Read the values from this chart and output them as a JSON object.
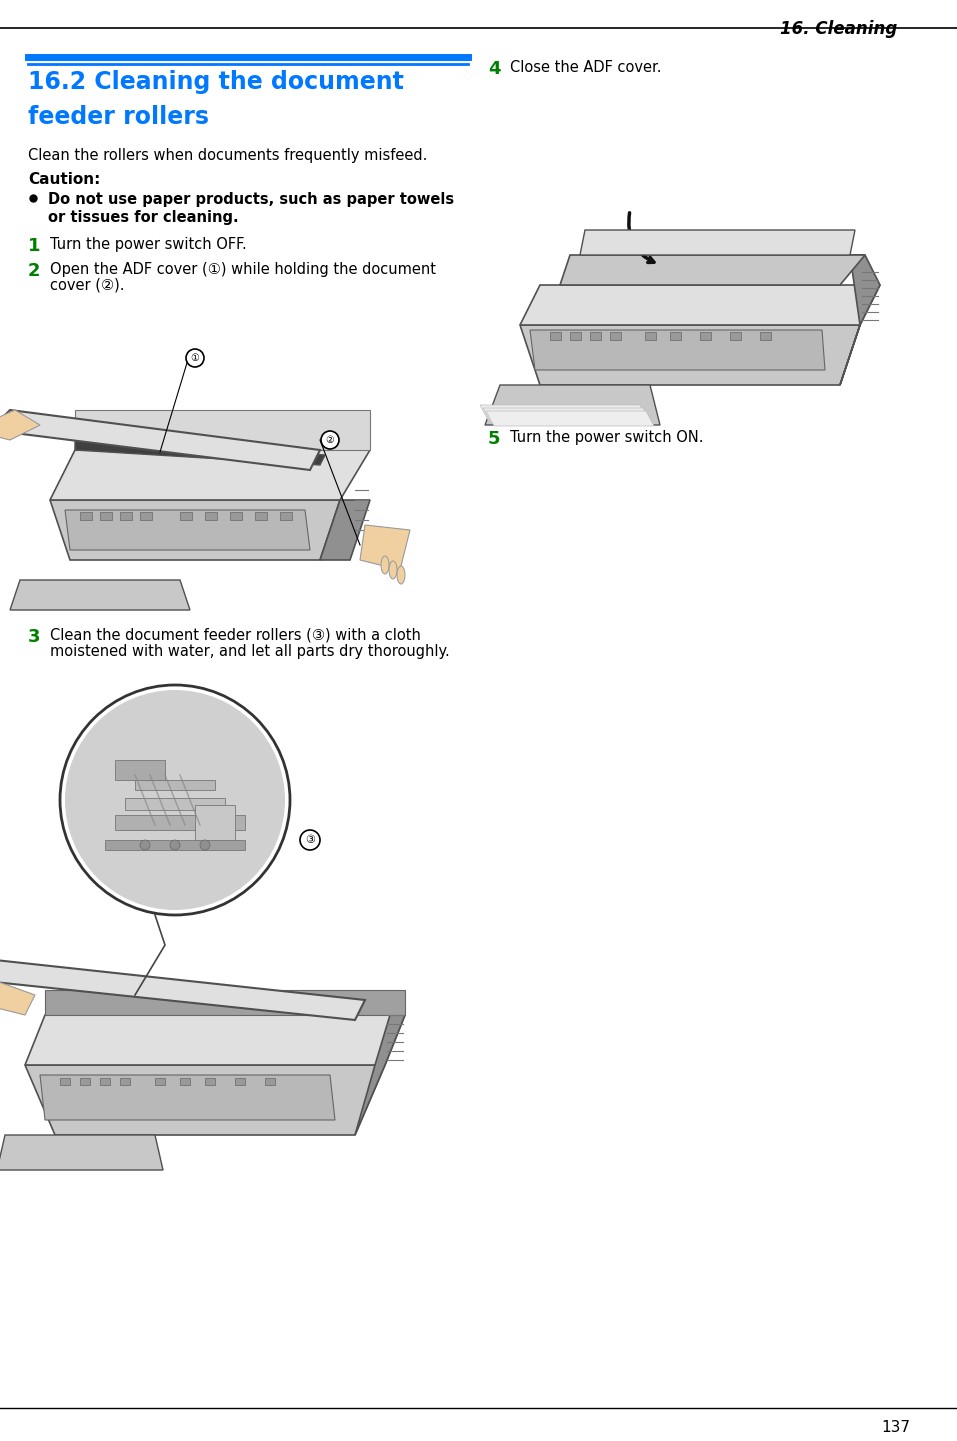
{
  "page_title": "16. Cleaning",
  "section_title_line1": "16.2 Cleaning the document",
  "section_title_line2": "feeder rollers",
  "section_title_color": "#0078FF",
  "intro_text": "Clean the rollers when documents frequently misfeed.",
  "caution_label": "Caution:",
  "caution_bullet_line1": "Do not use paper products, such as paper towels",
  "caution_bullet_line2": "or tissues for cleaning.",
  "step1_text": "Turn the power switch OFF.",
  "step2_text_line1": "Open the ADF cover (①) while holding the document",
  "step2_text_line2": "cover (②).",
  "step3_text_line1": "Clean the document feeder rollers (③) with a cloth",
  "step3_text_line2": "moistened with water, and let all parts dry thoroughly.",
  "step4_text": "Close the ADF cover.",
  "step5_text": "Turn the power switch ON.",
  "step_num_color": "#008000",
  "background_color": "#FFFFFF",
  "text_color": "#000000",
  "blue_bar_color": "#0078FF",
  "page_number": "137",
  "printer_gray": "#C8C8C8",
  "printer_light": "#E0E0E0",
  "printer_dark": "#909090",
  "printer_edge": "#505050"
}
